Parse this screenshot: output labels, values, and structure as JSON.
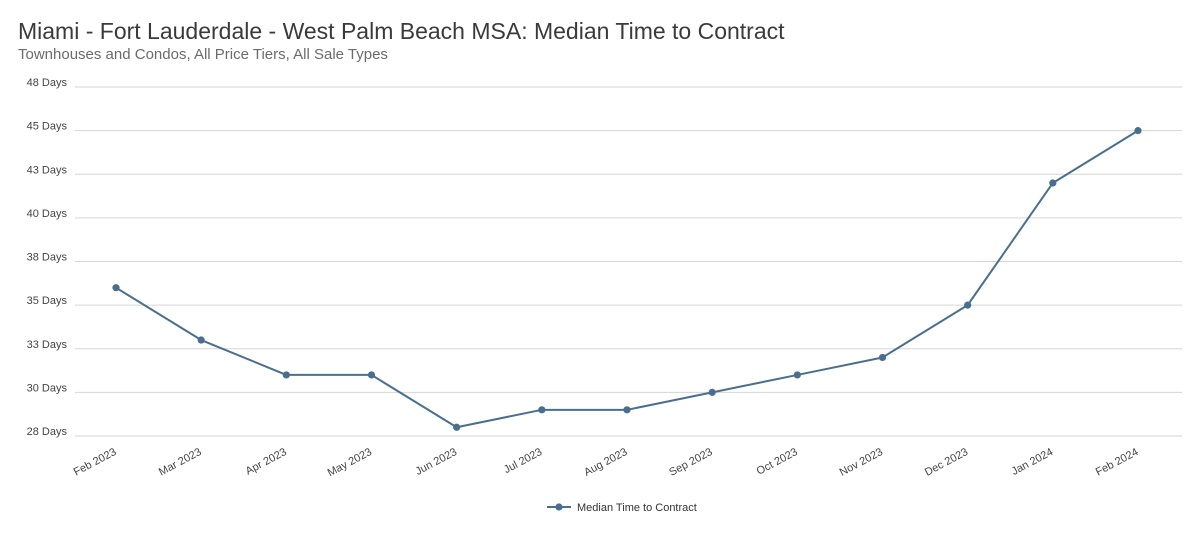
{
  "chart_data": {
    "type": "line",
    "title": "Miami - Fort Lauderdale - West Palm Beach MSA: Median Time to Contract",
    "subtitle": "Townhouses and Condos, All Price Tiers, All Sale Types",
    "xlabel": "",
    "ylabel": "",
    "categories": [
      "Feb 2023",
      "Mar 2023",
      "Apr 2023",
      "May 2023",
      "Jun 2023",
      "Jul 2023",
      "Aug 2023",
      "Sep 2023",
      "Oct 2023",
      "Nov 2023",
      "Dec 2023",
      "Jan 2024",
      "Feb 2024"
    ],
    "y_ticks": [
      {
        "value": 28,
        "label": "28 Days"
      },
      {
        "value": 30,
        "label": "30 Days"
      },
      {
        "value": 33,
        "label": "33 Days"
      },
      {
        "value": 35,
        "label": "35 Days"
      },
      {
        "value": 38,
        "label": "38 Days"
      },
      {
        "value": 40,
        "label": "40 Days"
      },
      {
        "value": 43,
        "label": "43 Days"
      },
      {
        "value": 45,
        "label": "45 Days"
      },
      {
        "value": 48,
        "label": "48 Days"
      }
    ],
    "ylim": [
      28,
      48
    ],
    "grid": true,
    "legend_position": "bottom-center",
    "series": [
      {
        "name": "Median Time to Contract",
        "color": "#4a6f8e",
        "values": [
          36.5,
          33.5,
          31.5,
          31.5,
          28.5,
          29.5,
          29.5,
          30.5,
          31.5,
          32.5,
          35.5,
          42.5,
          45.5
        ]
      }
    ]
  }
}
